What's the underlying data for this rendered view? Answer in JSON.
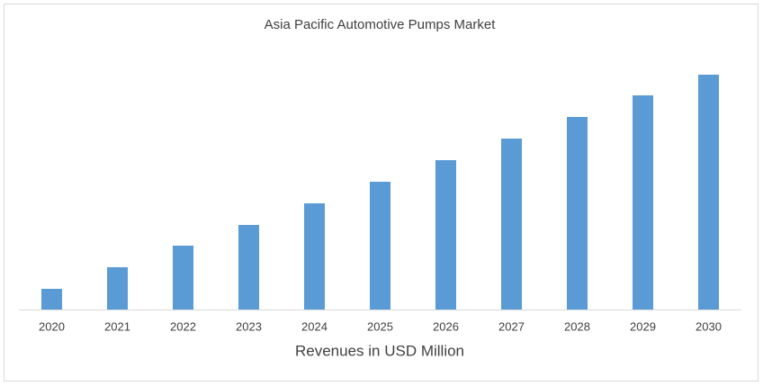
{
  "chart_data": {
    "type": "bar",
    "title": "Asia Pacific Automotive Pumps Market",
    "x_label": "Revenues in USD Million",
    "categories": [
      "2020",
      "2021",
      "2022",
      "2023",
      "2024",
      "2025",
      "2026",
      "2027",
      "2028",
      "2029",
      "2030"
    ],
    "values": [
      23,
      47,
      71,
      94,
      118,
      142,
      166,
      190,
      214,
      238,
      261
    ],
    "color": "#5b9bd5",
    "ylim": [
      0,
      270
    ]
  }
}
